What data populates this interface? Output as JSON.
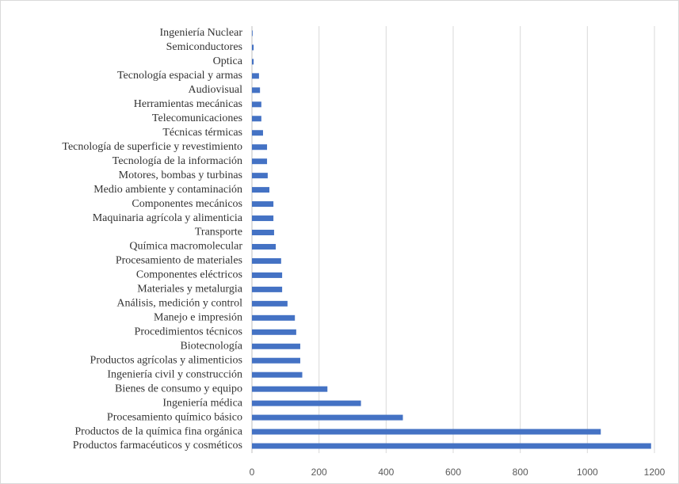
{
  "chart_data": {
    "type": "barh",
    "categories": [
      "Ingeniería Nuclear",
      "Semiconductores",
      "Optica",
      "Tecnología espacial y armas",
      "Audiovisual",
      "Herramientas mecánicas",
      "Telecomunicaciones",
      "Técnicas térmicas",
      "Tecnología de superficie y revestimiento",
      "Tecnología de la información",
      "Motores, bombas y turbinas",
      "Medio ambiente y contaminación",
      "Componentes mecánicos",
      "Maquinaria agrícola y alimenticia",
      "Transporte",
      "Química macromolecular",
      "Procesamiento de materiales",
      "Componentes eléctricos",
      "Materiales y metalurgia",
      "Análisis, medición y control",
      "Manejo e impresión",
      "Procedimientos técnicos",
      "Biotecnología",
      "Productos agrícolas y alimenticios",
      "Ingeniería civil y construcción",
      "Bienes de consumo y equipo",
      "Ingeniería médica",
      "Procesamiento químico básico",
      "Productos de la química fina orgánica",
      "Productos farmacéuticos y cosméticos"
    ],
    "values": [
      2,
      5,
      5,
      21,
      24,
      28,
      28,
      33,
      45,
      45,
      47,
      52,
      64,
      64,
      66,
      71,
      87,
      90,
      90,
      106,
      128,
      132,
      144,
      144,
      150,
      225,
      325,
      450,
      1040,
      1190
    ],
    "color": "#4472c4",
    "xlim": [
      0,
      1200
    ],
    "xticks": [
      0,
      200,
      400,
      600,
      800,
      1000,
      1200
    ],
    "grid": true
  }
}
